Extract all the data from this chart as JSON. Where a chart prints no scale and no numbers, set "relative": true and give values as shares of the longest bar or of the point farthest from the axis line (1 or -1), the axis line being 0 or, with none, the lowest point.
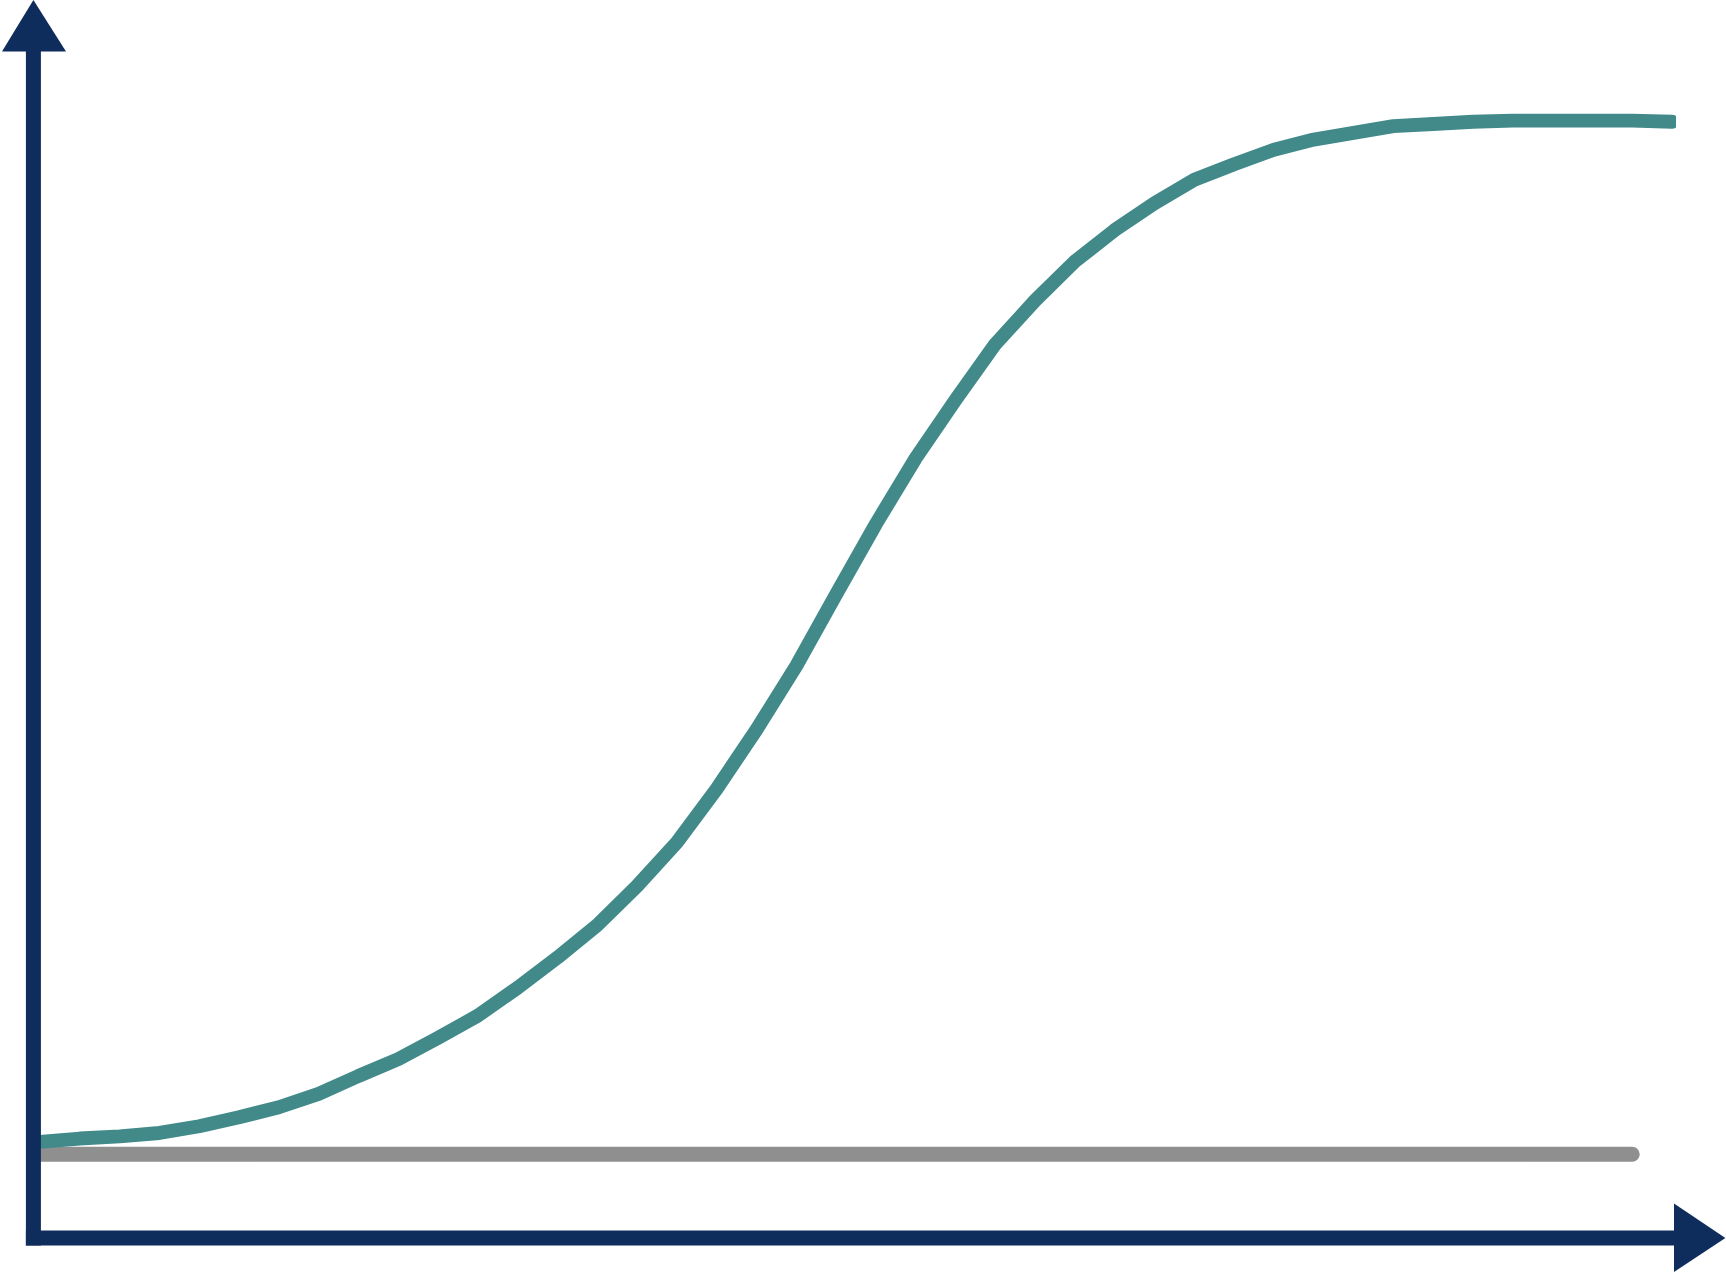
{
  "chart_data": {
    "type": "line",
    "relative": true,
    "categories": [
      null,
      null,
      null,
      null,
      null,
      null,
      null,
      null,
      null,
      null,
      null,
      null,
      null,
      null,
      null,
      null,
      null,
      null,
      null,
      null,
      null,
      null,
      null,
      null,
      null,
      null,
      null,
      null,
      null,
      null,
      null,
      null,
      null,
      null,
      null,
      null,
      null,
      null,
      null,
      null,
      null,
      null
    ],
    "series": [
      {
        "color": "#8f8f8f",
        "values": [
          0.075,
          0.075,
          0.075,
          0.075,
          0.075,
          0.075,
          0.075,
          0.075,
          0.075,
          0.075,
          0.075,
          0.075,
          0.075,
          0.075,
          0.075,
          0.075,
          0.075,
          0.075,
          0.075,
          0.075,
          0.075,
          0.075,
          0.075,
          0.075,
          0.075,
          0.075,
          0.075,
          0.075,
          0.075,
          0.075,
          0.075,
          0.075,
          0.075,
          0.075,
          0.075,
          0.075,
          0.075,
          0.075,
          0.075,
          0.075,
          0.075,
          null
        ]
      },
      {
        "color": "#428a8a",
        "values": [
          0.086,
          0.089,
          0.091,
          0.094,
          0.1,
          0.108,
          0.117,
          0.129,
          0.145,
          0.16,
          0.179,
          0.199,
          0.224,
          0.251,
          0.28,
          0.315,
          0.354,
          0.402,
          0.455,
          0.512,
          0.576,
          0.639,
          0.698,
          0.75,
          0.8,
          0.839,
          0.874,
          0.902,
          0.926,
          0.947,
          0.961,
          0.974,
          0.983,
          0.989,
          0.995,
          0.997,
          0.999,
          1.0,
          1.0,
          1.0,
          1.0,
          0.999
        ]
      }
    ]
  }
}
